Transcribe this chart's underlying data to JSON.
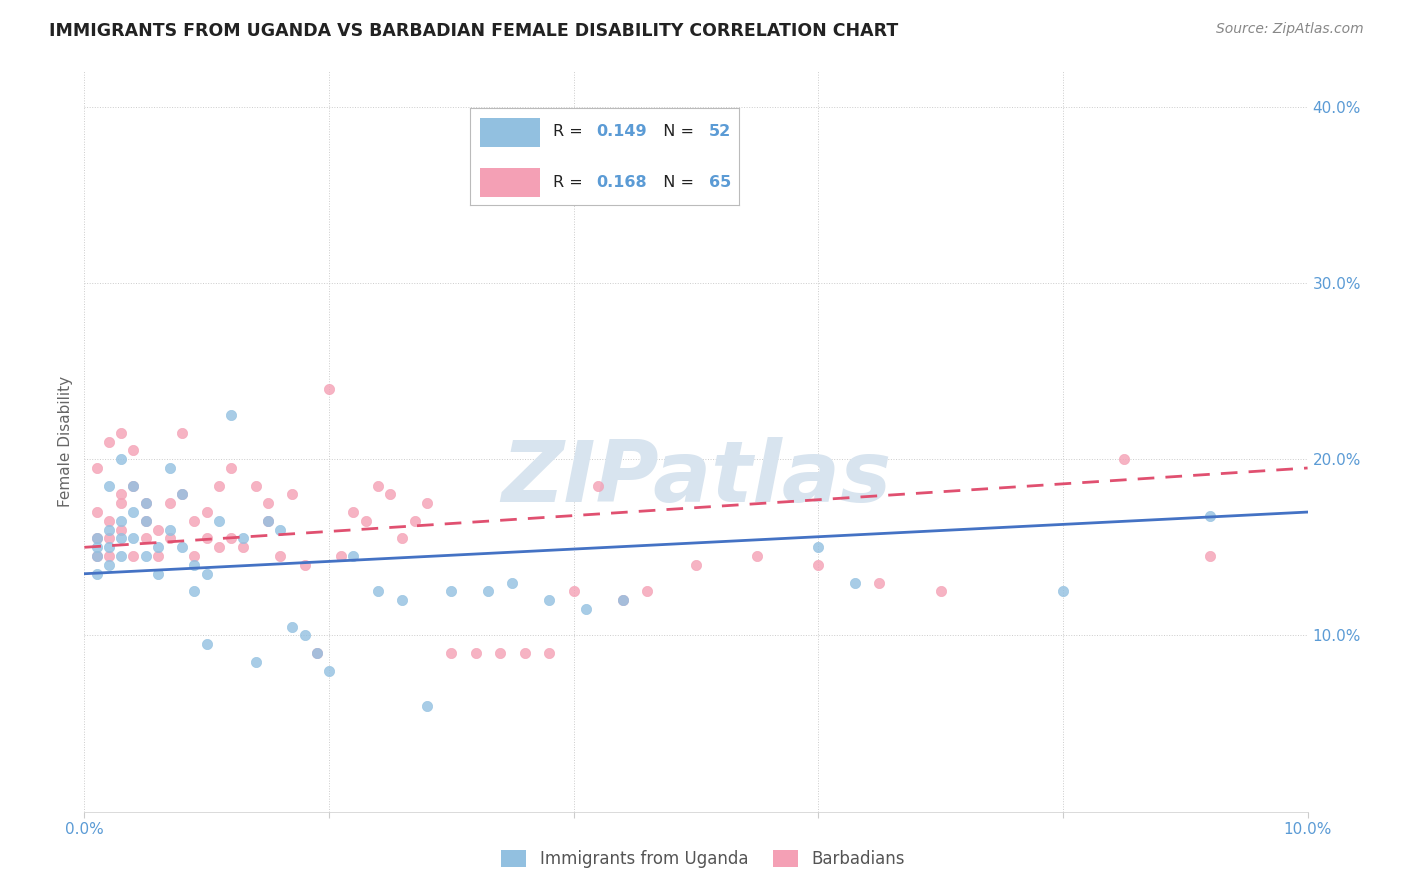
{
  "title": "IMMIGRANTS FROM UGANDA VS BARBADIAN FEMALE DISABILITY CORRELATION CHART",
  "source": "Source: ZipAtlas.com",
  "ylabel": "Female Disability",
  "xlim": [
    0.0,
    0.1
  ],
  "ylim": [
    0.0,
    0.42
  ],
  "x_ticks": [
    0.0,
    0.02,
    0.04,
    0.06,
    0.08,
    0.1
  ],
  "y_ticks": [
    0.0,
    0.1,
    0.2,
    0.3,
    0.4
  ],
  "uganda_color": "#92c0e0",
  "barbadian_color": "#f4a0b5",
  "uganda_line_color": "#4472c4",
  "barbadian_line_color": "#e05070",
  "watermark_color": "#d8e4ef",
  "legend_R_uganda": "0.149",
  "legend_N_uganda": "52",
  "legend_R_barbadian": "0.168",
  "legend_N_barbadian": "65",
  "uganda_scatter_x": [
    0.001,
    0.001,
    0.001,
    0.001,
    0.002,
    0.002,
    0.002,
    0.002,
    0.003,
    0.003,
    0.003,
    0.003,
    0.004,
    0.004,
    0.004,
    0.005,
    0.005,
    0.005,
    0.006,
    0.006,
    0.007,
    0.007,
    0.008,
    0.008,
    0.009,
    0.009,
    0.01,
    0.01,
    0.011,
    0.012,
    0.013,
    0.014,
    0.015,
    0.016,
    0.017,
    0.018,
    0.019,
    0.02,
    0.022,
    0.024,
    0.026,
    0.028,
    0.03,
    0.033,
    0.035,
    0.038,
    0.041,
    0.044,
    0.06,
    0.063,
    0.08,
    0.092
  ],
  "uganda_scatter_y": [
    0.145,
    0.15,
    0.135,
    0.155,
    0.185,
    0.16,
    0.14,
    0.15,
    0.155,
    0.165,
    0.2,
    0.145,
    0.185,
    0.17,
    0.155,
    0.175,
    0.145,
    0.165,
    0.15,
    0.135,
    0.195,
    0.16,
    0.18,
    0.15,
    0.14,
    0.125,
    0.095,
    0.135,
    0.165,
    0.225,
    0.155,
    0.085,
    0.165,
    0.16,
    0.105,
    0.1,
    0.09,
    0.08,
    0.145,
    0.125,
    0.12,
    0.06,
    0.125,
    0.125,
    0.13,
    0.12,
    0.115,
    0.12,
    0.15,
    0.13,
    0.125,
    0.168
  ],
  "barbadian_scatter_x": [
    0.001,
    0.001,
    0.001,
    0.001,
    0.002,
    0.002,
    0.002,
    0.002,
    0.003,
    0.003,
    0.003,
    0.003,
    0.004,
    0.004,
    0.004,
    0.005,
    0.005,
    0.005,
    0.006,
    0.006,
    0.007,
    0.007,
    0.008,
    0.008,
    0.009,
    0.009,
    0.01,
    0.01,
    0.011,
    0.011,
    0.012,
    0.012,
    0.013,
    0.014,
    0.015,
    0.015,
    0.016,
    0.017,
    0.018,
    0.019,
    0.02,
    0.021,
    0.022,
    0.023,
    0.024,
    0.025,
    0.026,
    0.027,
    0.028,
    0.03,
    0.032,
    0.034,
    0.036,
    0.038,
    0.04,
    0.042,
    0.044,
    0.046,
    0.05,
    0.055,
    0.06,
    0.065,
    0.07,
    0.085,
    0.092
  ],
  "barbadian_scatter_y": [
    0.155,
    0.195,
    0.17,
    0.145,
    0.21,
    0.165,
    0.155,
    0.145,
    0.215,
    0.18,
    0.16,
    0.175,
    0.205,
    0.145,
    0.185,
    0.165,
    0.175,
    0.155,
    0.16,
    0.145,
    0.175,
    0.155,
    0.215,
    0.18,
    0.145,
    0.165,
    0.17,
    0.155,
    0.185,
    0.15,
    0.195,
    0.155,
    0.15,
    0.185,
    0.165,
    0.175,
    0.145,
    0.18,
    0.14,
    0.09,
    0.24,
    0.145,
    0.17,
    0.165,
    0.185,
    0.18,
    0.155,
    0.165,
    0.175,
    0.09,
    0.09,
    0.09,
    0.09,
    0.09,
    0.125,
    0.185,
    0.12,
    0.125,
    0.14,
    0.145,
    0.14,
    0.13,
    0.125,
    0.2,
    0.145
  ]
}
